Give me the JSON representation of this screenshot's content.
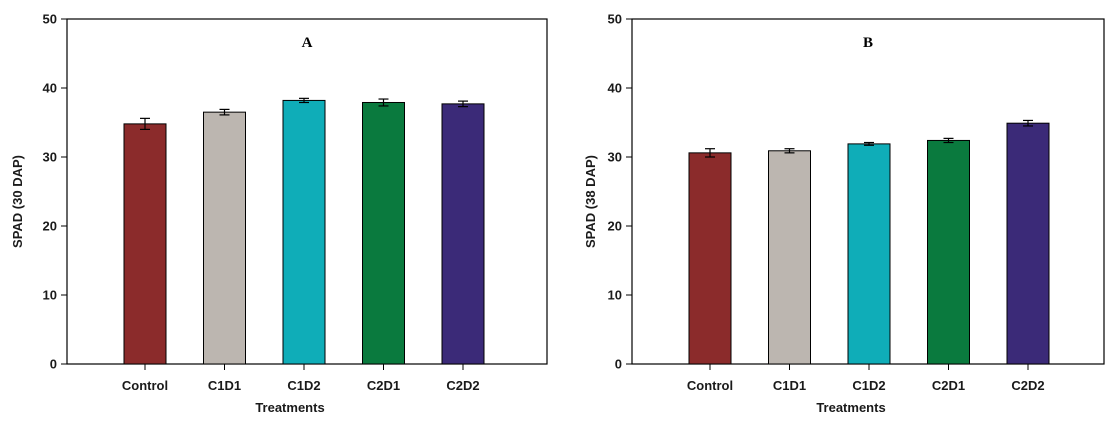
{
  "chart_data": [
    {
      "type": "bar",
      "title": "A",
      "xlabel": "Treatments",
      "ylabel": "SPAD (30 DAP)",
      "categories": [
        "Control",
        "C1D1",
        "C1D2",
        "C2D1",
        "C2D2"
      ],
      "values": [
        34.8,
        36.5,
        38.2,
        37.9,
        37.7
      ],
      "errors": [
        0.8,
        0.4,
        0.3,
        0.5,
        0.4
      ],
      "colors": [
        "#8b2b2b",
        "#bcb6b0",
        "#0fadb8",
        "#0a7a3e",
        "#3b2a78"
      ],
      "ylim": [
        0,
        50
      ],
      "yticks": [
        0,
        10,
        20,
        30,
        40,
        50
      ],
      "grid": false
    },
    {
      "type": "bar",
      "title": "B",
      "xlabel": "Treatments",
      "ylabel": "SPAD (38 DAP)",
      "categories": [
        "Control",
        "C1D1",
        "C1D2",
        "C2D1",
        "C2D2"
      ],
      "values": [
        30.6,
        30.9,
        31.9,
        32.4,
        34.9
      ],
      "errors": [
        0.6,
        0.3,
        0.2,
        0.3,
        0.4
      ],
      "colors": [
        "#8b2b2b",
        "#bcb6b0",
        "#0fadb8",
        "#0a7a3e",
        "#3b2a78"
      ],
      "ylim": [
        0,
        50
      ],
      "yticks": [
        0,
        10,
        20,
        30,
        40,
        50
      ],
      "grid": false
    }
  ]
}
